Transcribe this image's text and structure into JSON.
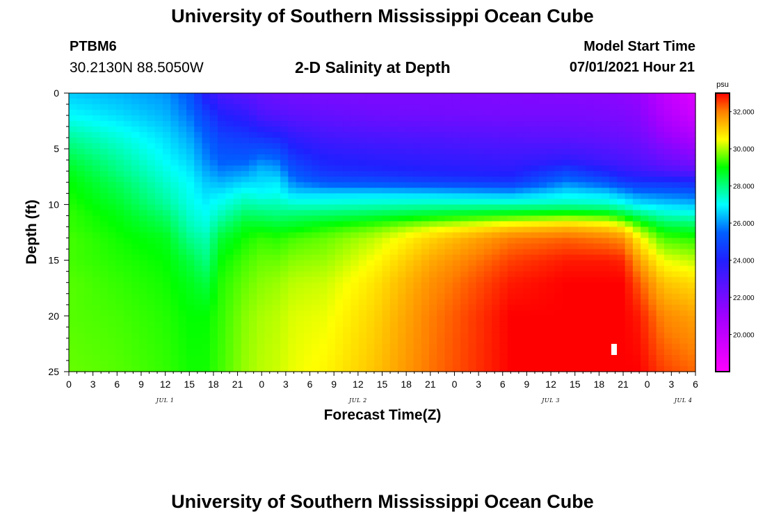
{
  "header": {
    "title": "University of Southern Mississippi Ocean Cube",
    "station_id": "PTBM6",
    "station_coords": "30.2130N  88.5050W",
    "plot_title": "2-D Salinity at Depth",
    "model_start_label": "Model Start Time",
    "model_start_value": "07/01/2021 Hour 21"
  },
  "footer": {
    "title": "University of Southern Mississippi Ocean Cube"
  },
  "chart_data": {
    "type": "heatmap",
    "variable": "Salinity",
    "units": "psu",
    "xlabel": "Forecast Time(Z)",
    "ylabel": "Depth (ft)",
    "x_tick_labels": [
      "0",
      "3",
      "6",
      "9",
      "12",
      "15",
      "18",
      "21",
      "0",
      "3",
      "6",
      "9",
      "12",
      "15",
      "18",
      "21",
      "0",
      "3",
      "6",
      "9",
      "12",
      "15",
      "18",
      "21",
      "0",
      "3",
      "6"
    ],
    "day_labels": [
      {
        "label": "JUL 1",
        "tick_index": 4
      },
      {
        "label": "JUL 2",
        "tick_index": 12
      },
      {
        "label": "JUL 3",
        "tick_index": 20
      },
      {
        "label": "JUL 4",
        "tick_index": 25.5
      }
    ],
    "x_range_hours": [
      0,
      78
    ],
    "y_range": [
      0,
      25
    ],
    "y_ticks": [
      0,
      5,
      10,
      15,
      20,
      25
    ],
    "y_inverted": true,
    "colorbar": {
      "label": "psu",
      "range": [
        18,
        33
      ],
      "ticks": [
        "20.000",
        "22.000",
        "24.000",
        "26.000",
        "28.000",
        "30.000",
        "32.000"
      ],
      "tick_values": [
        20,
        22,
        24,
        26,
        28,
        30,
        32
      ],
      "stops": [
        {
          "v": 18,
          "c": "#ff00ff"
        },
        {
          "v": 21,
          "c": "#a000ff"
        },
        {
          "v": 24,
          "c": "#2020ff"
        },
        {
          "v": 25.5,
          "c": "#0060ff"
        },
        {
          "v": 27,
          "c": "#00ffff"
        },
        {
          "v": 29,
          "c": "#00ff00"
        },
        {
          "v": 30.5,
          "c": "#ffff00"
        },
        {
          "v": 32,
          "c": "#ff8000"
        },
        {
          "v": 33,
          "c": "#ff0000"
        }
      ]
    },
    "depth_profiles_ft": [
      0,
      2,
      4,
      6,
      7,
      8,
      9,
      10,
      11,
      12,
      13,
      15,
      17,
      20,
      25
    ],
    "profiles": [
      {
        "t": 0,
        "values": [
          26.5,
          27.0,
          27.8,
          28.5,
          28.8,
          29.0,
          29.1,
          29.2,
          29.3,
          29.3,
          29.4,
          29.4,
          29.5,
          29.5,
          29.6
        ]
      },
      {
        "t": 6,
        "values": [
          26.3,
          26.7,
          27.3,
          27.8,
          28.0,
          28.3,
          28.5,
          28.7,
          28.9,
          29.0,
          29.1,
          29.2,
          29.3,
          29.4,
          29.5
        ]
      },
      {
        "t": 12,
        "values": [
          26.0,
          26.3,
          26.7,
          27.0,
          27.2,
          27.4,
          27.6,
          27.8,
          28.2,
          28.5,
          28.8,
          29.0,
          29.1,
          29.2,
          29.3
        ]
      },
      {
        "t": 15,
        "values": [
          25.3,
          25.7,
          26.2,
          26.6,
          26.8,
          27.0,
          27.1,
          27.2,
          27.4,
          27.6,
          27.9,
          28.5,
          28.8,
          29.0,
          29.1
        ]
      },
      {
        "t": 17,
        "values": [
          23.8,
          24.8,
          25.5,
          25.9,
          26.2,
          26.5,
          26.7,
          26.9,
          27.1,
          27.3,
          27.6,
          28.0,
          28.5,
          29.0,
          29.1
        ]
      },
      {
        "t": 19,
        "values": [
          23.0,
          24.0,
          24.8,
          25.4,
          25.8,
          26.3,
          26.8,
          27.2,
          27.6,
          28.1,
          28.6,
          29.0,
          29.2,
          29.3,
          29.4
        ]
      },
      {
        "t": 22,
        "values": [
          22.6,
          23.6,
          24.6,
          25.4,
          26.0,
          26.6,
          27.2,
          27.7,
          28.3,
          28.8,
          29.1,
          29.4,
          29.6,
          29.8,
          29.9
        ]
      },
      {
        "t": 24,
        "values": [
          22.3,
          23.0,
          24.4,
          25.8,
          26.4,
          26.7,
          27.0,
          27.6,
          28.2,
          28.8,
          29.3,
          29.6,
          29.8,
          30.0,
          30.1
        ]
      },
      {
        "t": 26,
        "values": [
          22.1,
          22.8,
          24.2,
          25.6,
          26.2,
          26.8,
          27.1,
          27.6,
          28.1,
          28.7,
          29.2,
          29.6,
          29.9,
          30.1,
          30.2
        ]
      },
      {
        "t": 28,
        "values": [
          22.0,
          22.6,
          23.6,
          24.6,
          25.2,
          25.8,
          26.6,
          27.4,
          28.2,
          28.8,
          29.4,
          29.8,
          30.1,
          30.3,
          30.4
        ]
      },
      {
        "t": 32,
        "values": [
          21.9,
          22.4,
          23.2,
          24.0,
          24.4,
          25.2,
          26.6,
          27.4,
          28.3,
          29.1,
          29.6,
          29.9,
          30.2,
          30.4,
          30.6
        ]
      },
      {
        "t": 38,
        "values": [
          21.8,
          22.2,
          23.0,
          23.8,
          24.2,
          25.1,
          26.6,
          27.5,
          28.5,
          29.5,
          30.1,
          30.5,
          30.8,
          31.0,
          31.2
        ]
      },
      {
        "t": 45,
        "values": [
          21.8,
          22.1,
          22.9,
          23.6,
          24.0,
          24.8,
          26.5,
          27.6,
          28.8,
          30.2,
          31.0,
          31.5,
          31.8,
          32.0,
          32.1
        ]
      },
      {
        "t": 55,
        "values": [
          21.7,
          22.0,
          22.7,
          23.4,
          23.8,
          24.5,
          26.2,
          27.6,
          29.2,
          31.0,
          32.0,
          32.5,
          32.8,
          33.0,
          33.0
        ]
      },
      {
        "t": 62,
        "values": [
          21.6,
          22.0,
          22.6,
          23.6,
          24.8,
          25.8,
          26.8,
          27.6,
          29.5,
          31.3,
          32.2,
          32.8,
          33.0,
          33.0,
          33.0
        ]
      },
      {
        "t": 67,
        "values": [
          21.5,
          21.9,
          22.4,
          23.2,
          24.0,
          25.2,
          26.6,
          27.5,
          29.3,
          31.0,
          32.0,
          32.8,
          33.0,
          33.0,
          33.0
        ]
      },
      {
        "t": 69,
        "values": [
          21.4,
          21.8,
          22.3,
          23.0,
          23.6,
          24.6,
          26.2,
          27.2,
          28.8,
          30.6,
          31.8,
          32.7,
          33.0,
          33.0,
          33.0
        ]
      },
      {
        "t": 71,
        "values": [
          21.2,
          21.6,
          22.1,
          22.8,
          23.4,
          24.4,
          25.8,
          26.8,
          28.2,
          29.6,
          30.6,
          31.6,
          32.3,
          32.8,
          33.0
        ]
      },
      {
        "t": 74,
        "values": [
          20.0,
          20.5,
          21.3,
          22.3,
          23.0,
          24.4,
          25.6,
          26.6,
          27.6,
          28.6,
          29.4,
          30.4,
          31.2,
          31.9,
          32.5
        ]
      },
      {
        "t": 78,
        "values": [
          19.0,
          19.6,
          20.6,
          21.8,
          22.6,
          24.2,
          25.4,
          26.4,
          27.4,
          28.4,
          29.2,
          30.1,
          30.9,
          31.6,
          32.2
        ]
      }
    ]
  }
}
